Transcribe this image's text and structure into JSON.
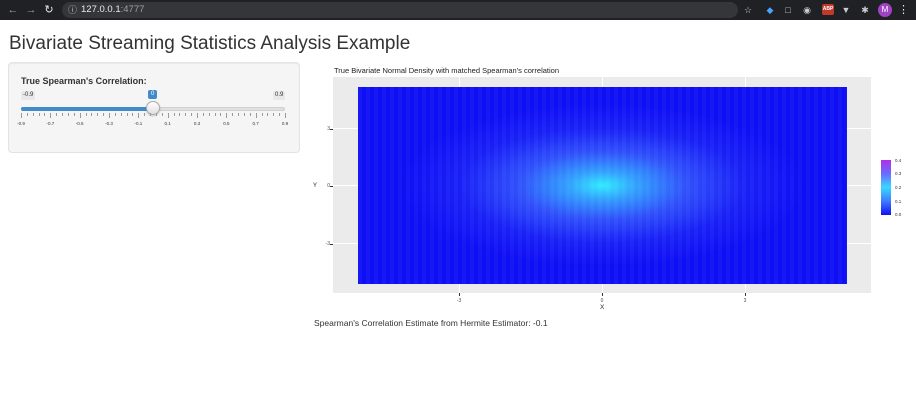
{
  "browser": {
    "url_host": "127.0.0.1",
    "url_port": ":4777",
    "ext_abp": "ABP",
    "avatar_letter": "M"
  },
  "page": {
    "title": "Bivariate Streaming Statistics Analysis Example"
  },
  "slider": {
    "label": "True Spearman's Correlation:",
    "min_label": "-0.9",
    "max_label": "0.9",
    "value_label": "0",
    "value": 0,
    "min": -0.9,
    "max": 0.9,
    "tick_labels": [
      "-0.9",
      "-0.7",
      "-0.5",
      "-0.3",
      "-0.1",
      "0.1",
      "0.3",
      "0.5",
      "0.7",
      "0.9"
    ]
  },
  "plot": {
    "title": "True Bivariate Normal Density with matched Spearman's correlation",
    "ylabel": "Y",
    "xlabel": "X",
    "y_ticks": [
      "3",
      "0",
      "-3"
    ],
    "x_ticks": [
      "-3",
      "0",
      "3"
    ],
    "legend_ticks": [
      "0.4",
      "0.3",
      "0.2",
      "0.1",
      "0.0"
    ]
  },
  "chart_data": {
    "type": "heatmap",
    "title": "True Bivariate Normal Density with matched Spearman's correlation",
    "xlabel": "X",
    "ylabel": "Y",
    "x_ticks": [
      -3,
      0,
      3
    ],
    "y_ticks": [
      -3,
      0,
      3
    ],
    "legend_ticks": [
      0.0,
      0.1,
      0.2,
      0.3,
      0.4
    ],
    "peak": {
      "x": 0,
      "y": 0,
      "density": 0.16
    },
    "legend_colors": [
      "#1010f5",
      "#3d7bff",
      "#38d8ff",
      "#6a6bff",
      "#b030e8"
    ]
  },
  "estimate": {
    "text": "Spearman's Correlation Estimate from Hermite Estimator: -0.1"
  }
}
